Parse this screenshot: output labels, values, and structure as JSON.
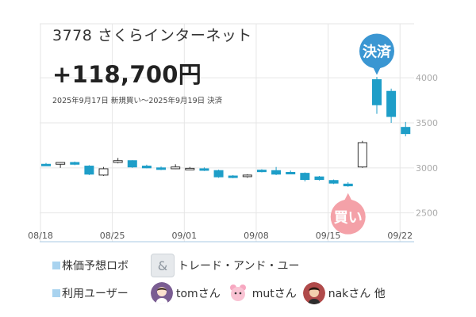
{
  "header": {
    "stock_name": "3778 さくらインターネット",
    "profit": "+118,700円",
    "period": "2025年9月17日 新規買い～2025年9月19日 決済"
  },
  "chart_data": {
    "type": "candlestick",
    "x_ticks": [
      "08/18",
      "08/25",
      "09/01",
      "09/08",
      "09/15",
      "09/22"
    ],
    "y_ticks": [
      2500,
      3000,
      3500,
      4000
    ],
    "ylim": [
      2180,
      4600
    ],
    "grid": true,
    "candles": [
      {
        "o": 3040,
        "h": 3055,
        "l": 3025,
        "c": 3030
      },
      {
        "o": 3040,
        "h": 3065,
        "l": 3000,
        "c": 3060
      },
      {
        "o": 3060,
        "h": 3070,
        "l": 3030,
        "c": 3040
      },
      {
        "o": 3020,
        "h": 3030,
        "l": 2920,
        "c": 2930
      },
      {
        "o": 2920,
        "h": 3010,
        "l": 2910,
        "c": 2990
      },
      {
        "o": 3060,
        "h": 3110,
        "l": 3050,
        "c": 3080
      },
      {
        "o": 3080,
        "h": 3085,
        "l": 3000,
        "c": 3010
      },
      {
        "o": 3020,
        "h": 3035,
        "l": 2995,
        "c": 3000
      },
      {
        "o": 3000,
        "h": 3015,
        "l": 2975,
        "c": 2990
      },
      {
        "o": 2990,
        "h": 3040,
        "l": 2985,
        "c": 3010
      },
      {
        "o": 2990,
        "h": 3010,
        "l": 2980,
        "c": 2995
      },
      {
        "o": 2990,
        "h": 3005,
        "l": 2965,
        "c": 2975
      },
      {
        "o": 2970,
        "h": 2980,
        "l": 2890,
        "c": 2900
      },
      {
        "o": 2910,
        "h": 2920,
        "l": 2885,
        "c": 2895
      },
      {
        "o": 2905,
        "h": 2930,
        "l": 2890,
        "c": 2920
      },
      {
        "o": 2975,
        "h": 2985,
        "l": 2950,
        "c": 2960
      },
      {
        "o": 2970,
        "h": 3010,
        "l": 2920,
        "c": 2930
      },
      {
        "o": 2950,
        "h": 2970,
        "l": 2930,
        "c": 2940
      },
      {
        "o": 2940,
        "h": 2950,
        "l": 2850,
        "c": 2870
      },
      {
        "o": 2900,
        "h": 2910,
        "l": 2860,
        "c": 2870
      },
      {
        "o": 2860,
        "h": 2870,
        "l": 2820,
        "c": 2830
      },
      {
        "o": 2820,
        "h": 2840,
        "l": 2790,
        "c": 2800
      },
      {
        "o": 3010,
        "h": 3300,
        "l": 3000,
        "c": 3280
      },
      {
        "o": 3980,
        "h": 4010,
        "l": 3600,
        "c": 3700
      },
      {
        "o": 3850,
        "h": 3880,
        "l": 3500,
        "c": 3570
      },
      {
        "o": 3450,
        "h": 3510,
        "l": 3350,
        "c": 3380
      }
    ],
    "buy_marker": {
      "label": "買い",
      "candle": 21
    },
    "sell_marker": {
      "label": "決済",
      "candle": 23
    },
    "colors": {
      "down": "#1e9ec8",
      "up_fill": "#ffffff",
      "up_stroke": "#333333",
      "buy": "#f4a1a8",
      "sell": "#3a96d2",
      "grid": "#e6e6e6"
    }
  },
  "footer": {
    "robot_label": "株価予想ロボ",
    "robot_name": "トレード・アンド・ユー",
    "users_label": "利用ユーザー",
    "users": [
      "tomさん",
      "mutさん",
      "nakさん 他"
    ]
  }
}
